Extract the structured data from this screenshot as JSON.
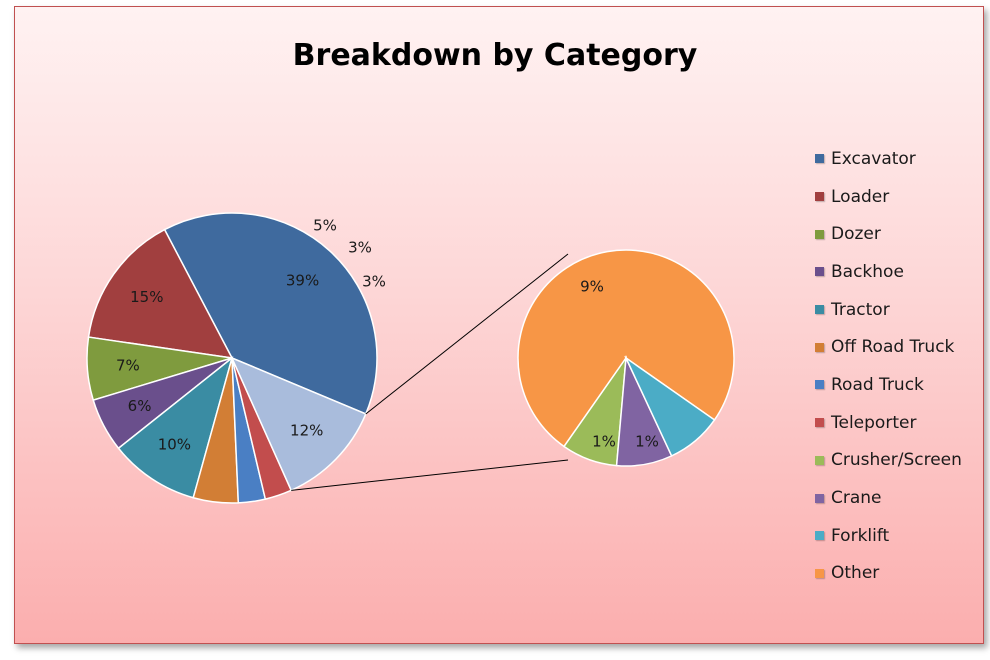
{
  "chart_data": {
    "type": "pie",
    "subtype": "pie-of-pie",
    "title": "Breakdown by Category",
    "legend_position": "right",
    "categories": [
      "Excavator",
      "Loader",
      "Dozer",
      "Backhoe",
      "Tractor",
      "Off Road Truck",
      "Road Truck",
      "Teleporter",
      "Crusher/Screen",
      "Crane",
      "Forklift",
      "Other"
    ],
    "main_pie": [
      {
        "label": "Excavator",
        "value": 39,
        "text": "39%",
        "color": "#3f6a9e"
      },
      {
        "label": "Loader",
        "value": 15,
        "text": "15%",
        "color": "#a13f3f"
      },
      {
        "label": "Dozer",
        "value": 7,
        "text": "7%",
        "color": "#7f9b3e"
      },
      {
        "label": "Backhoe",
        "value": 6,
        "text": "6%",
        "color": "#6a4f8c"
      },
      {
        "label": "Tractor",
        "value": 10,
        "text": "10%",
        "color": "#3a8ca3"
      },
      {
        "label": "Off Road Truck",
        "value": 5,
        "text": "5%",
        "color": "#d27e35"
      },
      {
        "label": "Road Truck",
        "value": 3,
        "text": "3%",
        "color": "#4a7fc4"
      },
      {
        "label": "Teleporter",
        "value": 3,
        "text": "3%",
        "color": "#c24d4d"
      },
      {
        "label": "Other",
        "value": 12,
        "text": "12%",
        "color": "#a9bcdc"
      }
    ],
    "secondary_pie": [
      {
        "label": "Other",
        "value": 9,
        "text": "9%",
        "color": "#f79646"
      },
      {
        "label": "Crusher/Screen",
        "value": 1,
        "text": "1%",
        "color": "#9bbb59"
      },
      {
        "label": "Crane",
        "value": 1,
        "text": "1%",
        "color": "#8064a2"
      },
      {
        "label": "Forklift",
        "value": 1,
        "text": "1%",
        "color": "#4bacc6"
      }
    ],
    "legend": [
      {
        "label": "Excavator",
        "color": "#3f6a9e"
      },
      {
        "label": "Loader",
        "color": "#a13f3f"
      },
      {
        "label": "Dozer",
        "color": "#7f9b3e"
      },
      {
        "label": "Backhoe",
        "color": "#6a4f8c"
      },
      {
        "label": "Tractor",
        "color": "#3a8ca3"
      },
      {
        "label": "Off Road Truck",
        "color": "#d27e35"
      },
      {
        "label": "Road Truck",
        "color": "#4a7fc4"
      },
      {
        "label": "Teleporter",
        "color": "#c24d4d"
      },
      {
        "label": "Crusher/Screen",
        "color": "#9bbb59"
      },
      {
        "label": "Crane",
        "color": "#8064a2"
      },
      {
        "label": "Forklift",
        "color": "#4bacc6"
      },
      {
        "label": "Other",
        "color": "#f79646"
      }
    ]
  }
}
